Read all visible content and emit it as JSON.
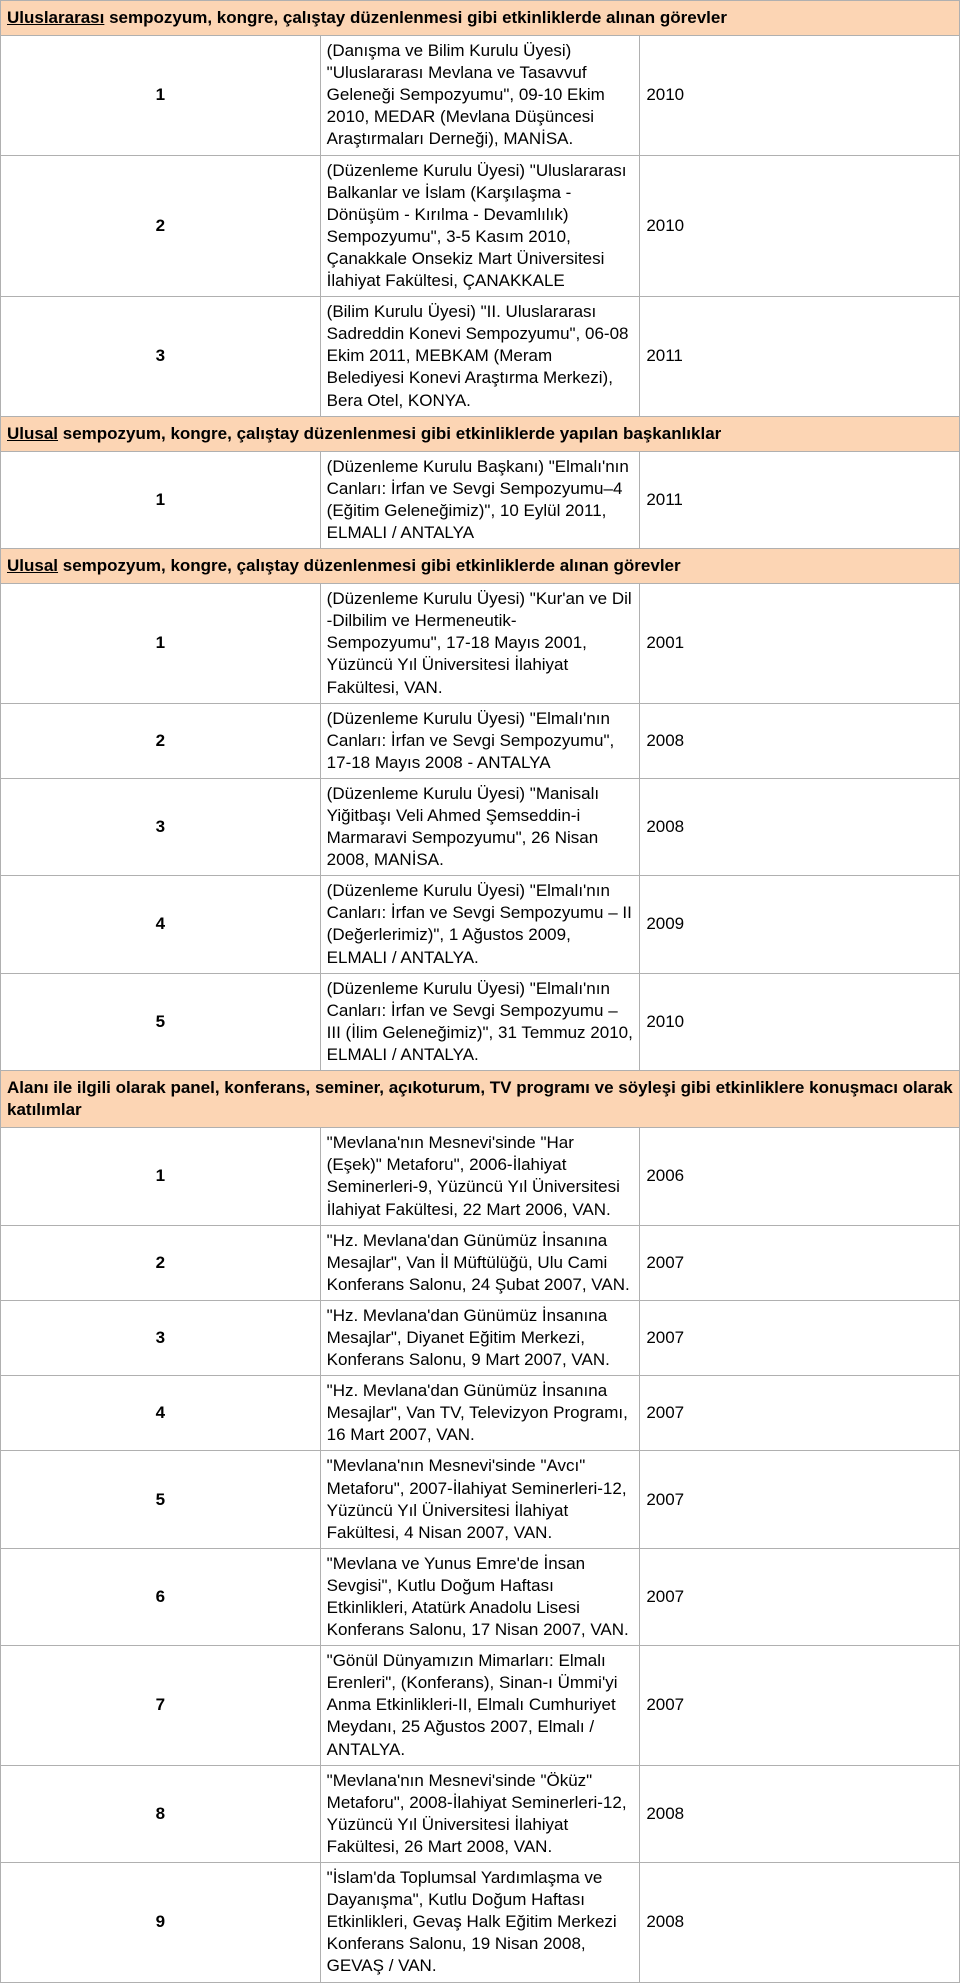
{
  "colors": {
    "header_bg": "#fcd5b4",
    "border": "#b0b0b0",
    "text": "#000000"
  },
  "typography": {
    "base_fontsize": 17,
    "header_fontsize": 17,
    "font_family": "Arial"
  },
  "layout": {
    "col_num_width": 42,
    "col_year_width": 70,
    "total_width": 960
  },
  "sections": [
    {
      "title_underlined": "Uluslararası",
      "title_rest": " sempozyum, kongre, çalıştay düzenlenmesi gibi etkinliklerde alınan görevler",
      "rows": [
        {
          "num": "1",
          "desc": "(Danışma ve Bilim Kurulu Üyesi) \"Uluslararası Mevlana ve Tasavvuf Geleneği Sempozyumu\", 09-10 Ekim 2010, MEDAR (Mevlana Düşüncesi Araştırmaları Derneği), MANİSA.",
          "year": "2010"
        },
        {
          "num": "2",
          "desc": "(Düzenleme Kurulu Üyesi) \"Uluslararası Balkanlar ve İslam (Karşılaşma - Dönüşüm - Kırılma - Devamlılık) Sempozyumu\", 3-5 Kasım 2010, Çanakkale Onsekiz Mart Üniversitesi İlahiyat Fakültesi, ÇANAKKALE",
          "year": "2010"
        },
        {
          "num": "3",
          "desc": "(Bilim Kurulu Üyesi) \"II. Uluslararası Sadreddin Konevi Sempozyumu\", 06-08 Ekim 2011, MEBKAM (Meram Belediyesi Konevi Araştırma Merkezi), Bera Otel, KONYA.",
          "year": "2011"
        }
      ]
    },
    {
      "title_underlined": "Ulusal",
      "title_rest": " sempozyum, kongre, çalıştay düzenlenmesi gibi etkinliklerde yapılan başkanlıklar",
      "rows": [
        {
          "num": "1",
          "desc": "(Düzenleme Kurulu Başkanı) \"Elmalı'nın Canları: İrfan ve Sevgi Sempozyumu–4 (Eğitim Geleneğimiz)\", 10 Eylül 2011, ELMALI / ANTALYA",
          "year": "2011"
        }
      ]
    },
    {
      "title_underlined": "Ulusal",
      "title_rest": " sempozyum, kongre, çalıştay düzenlenmesi gibi etkinliklerde alınan görevler",
      "rows": [
        {
          "num": "1",
          "desc": "(Düzenleme Kurulu Üyesi) \"Kur'an ve Dil -Dilbilim ve Hermeneutik- Sempozyumu\", 17-18 Mayıs 2001, Yüzüncü Yıl Üniversitesi İlahiyat Fakültesi, VAN.",
          "year": "2001"
        },
        {
          "num": "2",
          "desc": "(Düzenleme Kurulu Üyesi) \"Elmalı'nın Canları: İrfan ve Sevgi Sempozyumu\", 17-18 Mayıs 2008 - ANTALYA",
          "year": "2008"
        },
        {
          "num": "3",
          "desc": "(Düzenleme Kurulu Üyesi) \"Manisalı Yiğitbaşı Veli Ahmed Şemseddin-i Marmaravi Sempozyumu\", 26 Nisan 2008, MANİSA.",
          "year": "2008"
        },
        {
          "num": "4",
          "desc": "(Düzenleme Kurulu Üyesi) \"Elmalı'nın Canları: İrfan ve Sevgi Sempozyumu – II (Değerlerimiz)\", 1 Ağustos 2009, ELMALI / ANTALYA.",
          "year": "2009"
        },
        {
          "num": "5",
          "desc": "(Düzenleme Kurulu Üyesi) \"Elmalı'nın Canları: İrfan ve Sevgi Sempozyumu – III (İlim Geleneğimiz)\", 31 Temmuz 2010, ELMALI / ANTALYA.",
          "year": "2010"
        }
      ]
    },
    {
      "title_underlined": "",
      "title_rest": "Alanı ile ilgili olarak panel, konferans, seminer, açıkoturum, TV programı ve söyleşi gibi etkinliklere konuşmacı olarak katılımlar",
      "rows": [
        {
          "num": "1",
          "desc": "\"Mevlana'nın Mesnevi'sinde \"Har (Eşek)\" Metaforu\", 2006-İlahiyat Seminerleri-9, Yüzüncü Yıl Üniversitesi İlahiyat Fakültesi, 22 Mart 2006, VAN.",
          "year": "2006"
        },
        {
          "num": "2",
          "desc": "\"Hz. Mevlana'dan Günümüz İnsanına Mesajlar\", Van İl Müftülüğü, Ulu Cami Konferans Salonu, 24 Şubat 2007, VAN.",
          "year": "2007"
        },
        {
          "num": "3",
          "desc": "\"Hz. Mevlana'dan Günümüz İnsanına Mesajlar\", Diyanet Eğitim Merkezi, Konferans Salonu, 9 Mart 2007, VAN.",
          "year": "2007"
        },
        {
          "num": "4",
          "desc": "\"Hz. Mevlana'dan Günümüz İnsanına Mesajlar\", Van TV, Televizyon Programı, 16 Mart 2007, VAN.",
          "year": "2007"
        },
        {
          "num": "5",
          "desc": "\"Mevlana'nın Mesnevi'sinde \"Avcı\" Metaforu\", 2007-İlahiyat Seminerleri-12, Yüzüncü Yıl Üniversitesi İlahiyat Fakültesi, 4 Nisan 2007, VAN.",
          "year": "2007"
        },
        {
          "num": "6",
          "desc": "\"Mevlana ve Yunus Emre'de İnsan Sevgisi\", Kutlu Doğum Haftası Etkinlikleri, Atatürk Anadolu Lisesi Konferans Salonu, 17 Nisan 2007, VAN.",
          "year": "2007"
        },
        {
          "num": "7",
          "desc": "\"Gönül Dünyamızın Mimarları: Elmalı Erenleri\", (Konferans), Sinan-ı Ümmi'yi Anma Etkinlikleri-II, Elmalı Cumhuriyet Meydanı, 25 Ağustos 2007, Elmalı / ANTALYA.",
          "year": "2007"
        },
        {
          "num": "8",
          "desc": "\"Mevlana'nın Mesnevi'sinde \"Öküz\" Metaforu\", 2008-İlahiyat Seminerleri-12, Yüzüncü Yıl Üniversitesi İlahiyat Fakültesi, 26 Mart 2008, VAN.",
          "year": "2008"
        },
        {
          "num": "9",
          "desc": "\"İslam'da Toplumsal Yardımlaşma ve Dayanışma\", Kutlu Doğum Haftası Etkinlikleri, Gevaş Halk Eğitim Merkezi Konferans Salonu, 19 Nisan 2008, GEVAŞ / VAN.",
          "year": "2008"
        }
      ]
    }
  ]
}
